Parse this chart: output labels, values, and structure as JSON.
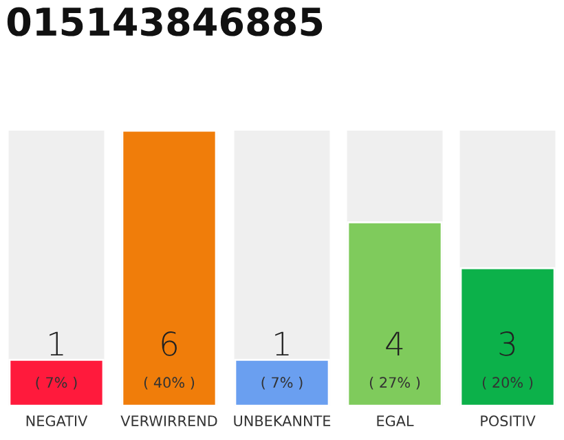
{
  "chart_data": {
    "type": "bar",
    "title": "015143846885",
    "categories": [
      "NEGATIV",
      "VERWIRREND",
      "UNBEKANNTE",
      "EGAL",
      "POSITIV"
    ],
    "values": [
      1,
      6,
      1,
      4,
      3
    ],
    "colors": [
      "#ff1a3c",
      "#f07d0a",
      "#6a9ff0",
      "#7fcb5c",
      "#0cb14a"
    ],
    "data_labels": true,
    "annotations": [
      "( 7% )",
      "( 40% )",
      "( 7% )",
      "( 27% )",
      "( 20% )"
    ],
    "grid": false,
    "legend": false
  }
}
